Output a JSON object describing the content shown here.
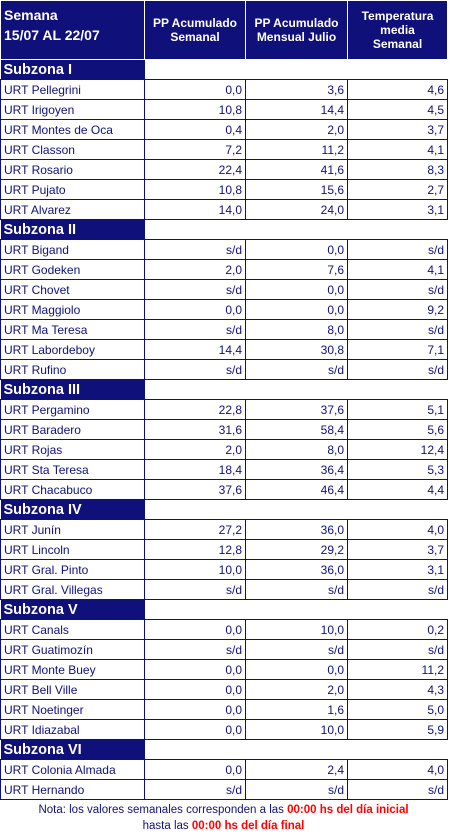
{
  "header": {
    "col0_line1": "Semana",
    "col0_line2": "15/07 AL 22/07",
    "col1_line1": "PP Acumulado",
    "col1_line2": "Semanal",
    "col2_line1": "PP Acumulado",
    "col2_line2": "Mensual Julio",
    "col3_line1": "Temperatura",
    "col3_line2": "media",
    "col3_line3": "Semanal"
  },
  "subzones": [
    {
      "name": "Subzona I",
      "rows": [
        {
          "station": "URT Pellegrini",
          "pp_sem": "0,0",
          "pp_mes": "3,6",
          "temp": "4,6"
        },
        {
          "station": "URT Irigoyen",
          "pp_sem": "10,8",
          "pp_mes": "14,4",
          "temp": "4,5"
        },
        {
          "station": "URT Montes de Oca",
          "pp_sem": "0,4",
          "pp_mes": "2,0",
          "temp": "3,7"
        },
        {
          "station": "URT Classon",
          "pp_sem": "7,2",
          "pp_mes": "11,2",
          "temp": "4,1"
        },
        {
          "station": "URT Rosario",
          "pp_sem": "22,4",
          "pp_mes": "41,6",
          "temp": "8,3"
        },
        {
          "station": "URT Pujato",
          "pp_sem": "10,8",
          "pp_mes": "15,6",
          "temp": "2,7"
        },
        {
          "station": "URT Alvarez",
          "pp_sem": "14,0",
          "pp_mes": "24,0",
          "temp": "3,1"
        }
      ]
    },
    {
      "name": "Subzona II",
      "rows": [
        {
          "station": "URT Bigand",
          "pp_sem": "s/d",
          "pp_mes": "0,0",
          "temp": "s/d"
        },
        {
          "station": "URT Godeken",
          "pp_sem": "2,0",
          "pp_mes": "7,6",
          "temp": "4,1"
        },
        {
          "station": "URT Chovet",
          "pp_sem": "s/d",
          "pp_mes": "0,0",
          "temp": "s/d"
        },
        {
          "station": "URT Maggiolo",
          "pp_sem": "0,0",
          "pp_mes": "0,0",
          "temp": "9,2"
        },
        {
          "station": "URT Ma Teresa",
          "pp_sem": "s/d",
          "pp_mes": "8,0",
          "temp": "s/d"
        },
        {
          "station": "URT Labordeboy",
          "pp_sem": "14,4",
          "pp_mes": "30,8",
          "temp": "7,1"
        },
        {
          "station": "URT Rufino",
          "pp_sem": "s/d",
          "pp_mes": "s/d",
          "temp": "s/d"
        }
      ]
    },
    {
      "name": "Subzona III",
      "rows": [
        {
          "station": "URT Pergamino",
          "pp_sem": "22,8",
          "pp_mes": "37,6",
          "temp": "5,1"
        },
        {
          "station": "URT Baradero",
          "pp_sem": "31,6",
          "pp_mes": "58,4",
          "temp": "5,6"
        },
        {
          "station": "URT Rojas",
          "pp_sem": "2,0",
          "pp_mes": "8,0",
          "temp": "12,4"
        },
        {
          "station": "URT Sta Teresa",
          "pp_sem": "18,4",
          "pp_mes": "36,4",
          "temp": "5,3"
        },
        {
          "station": "URT Chacabuco",
          "pp_sem": "37,6",
          "pp_mes": "46,4",
          "temp": "4,4"
        }
      ]
    },
    {
      "name": "Subzona IV",
      "rows": [
        {
          "station": "URT Junín",
          "pp_sem": "27,2",
          "pp_mes": "36,0",
          "temp": "4,0"
        },
        {
          "station": "URT Lincoln",
          "pp_sem": "12,8",
          "pp_mes": "29,2",
          "temp": "3,7"
        },
        {
          "station": "URT Gral. Pinto",
          "pp_sem": "10,0",
          "pp_mes": "36,0",
          "temp": "3,1"
        },
        {
          "station": "URT Gral. Villegas",
          "pp_sem": "s/d",
          "pp_mes": "s/d",
          "temp": "s/d"
        }
      ]
    },
    {
      "name": "Subzona V",
      "rows": [
        {
          "station": "URT Canals",
          "pp_sem": "0,0",
          "pp_mes": "10,0",
          "temp": "0,2"
        },
        {
          "station": "URT Guatimozín",
          "pp_sem": "s/d",
          "pp_mes": "s/d",
          "temp": "s/d"
        },
        {
          "station": "URT Monte Buey",
          "pp_sem": "0,0",
          "pp_mes": "0,0",
          "temp": "11,2"
        },
        {
          "station": "URT Bell Ville",
          "pp_sem": "0,0",
          "pp_mes": "2,0",
          "temp": "4,3"
        },
        {
          "station": "URT Noetinger",
          "pp_sem": "0,0",
          "pp_mes": "1,6",
          "temp": "5,0"
        },
        {
          "station": "URT Idiazabal",
          "pp_sem": "0,0",
          "pp_mes": "10,0",
          "temp": "5,9"
        }
      ]
    },
    {
      "name": "Subzona VI",
      "rows": [
        {
          "station": "URT Colonia Almada",
          "pp_sem": "0,0",
          "pp_mes": "2,4",
          "temp": "4,0"
        },
        {
          "station": "URT Hernando",
          "pp_sem": "s/d",
          "pp_mes": "s/d",
          "temp": "s/d"
        }
      ]
    }
  ],
  "note": {
    "part1": "Nota: los valores semanales corresponden a las ",
    "red1": "00:00 hs del día inicial",
    "part2": "hasta las ",
    "red2": "00:00 hs del día final"
  }
}
